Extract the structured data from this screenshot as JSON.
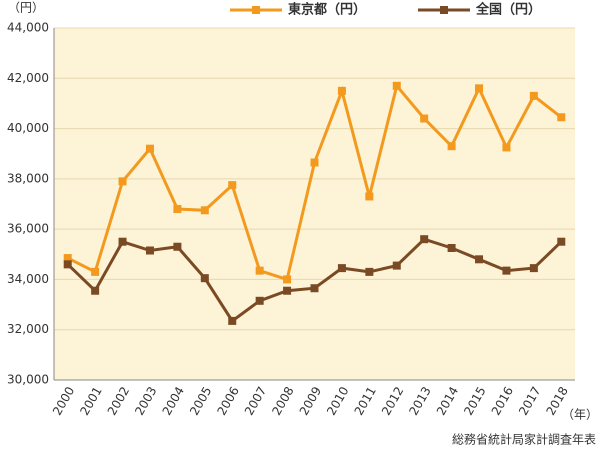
{
  "chart_data": {
    "type": "line",
    "y_unit": "（円）",
    "x_unit": "（年）",
    "source": "総務省統計局家計調査年表",
    "categories": [
      "2000",
      "2001",
      "2002",
      "2003",
      "2004",
      "2005",
      "2006",
      "2007",
      "2008",
      "2009",
      "2010",
      "2011",
      "2012",
      "2013",
      "2014",
      "2015",
      "2016",
      "2017",
      "2018"
    ],
    "series": [
      {
        "name": "東京都（円）",
        "color": "#f39a1e",
        "values": [
          34850,
          34300,
          37900,
          39200,
          36800,
          36750,
          37750,
          34350,
          34000,
          38650,
          41500,
          37300,
          41700,
          40400,
          39300,
          41600,
          39250,
          41300,
          40450
        ]
      },
      {
        "name": "全国（円）",
        "color": "#7a4a24",
        "values": [
          34600,
          33550,
          35500,
          35150,
          35300,
          34050,
          32350,
          33150,
          33550,
          33650,
          34450,
          34300,
          34550,
          35600,
          35250,
          34800,
          34350,
          34450,
          35500
        ]
      }
    ],
    "ylim": [
      30000,
      44000
    ],
    "yticks": [
      {
        "value": 30000,
        "label": "30,000"
      },
      {
        "value": 32000,
        "label": "32,000"
      },
      {
        "value": 34000,
        "label": "34,000"
      },
      {
        "value": 36000,
        "label": "36,000"
      },
      {
        "value": 38000,
        "label": "38,000"
      },
      {
        "value": 40000,
        "label": "40,000"
      },
      {
        "value": 42000,
        "label": "42,000"
      },
      {
        "value": 44000,
        "label": "44,000"
      }
    ],
    "grid": true,
    "background": "#fdf3d6"
  }
}
